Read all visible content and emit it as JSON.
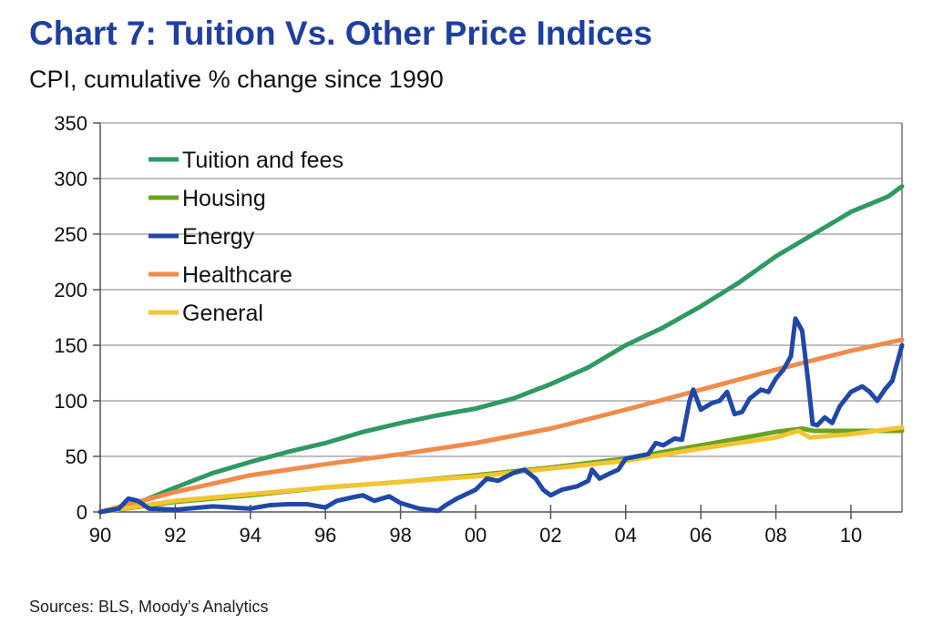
{
  "chart_data": {
    "type": "line",
    "title": "Chart 7: Tuition Vs. Other Price Indices",
    "subtitle": "CPI, cumulative % change since 1990",
    "source": "Sources: BLS, Moody's Analytics",
    "xlim": [
      1990,
      2011.36
    ],
    "ylim": [
      0,
      350
    ],
    "x_ticks": [
      1990,
      1992,
      1994,
      1996,
      1998,
      2000,
      2002,
      2004,
      2006,
      2008,
      2010
    ],
    "x_tick_labels": [
      "90",
      "92",
      "94",
      "96",
      "98",
      "00",
      "02",
      "04",
      "06",
      "08",
      "10"
    ],
    "y_ticks": [
      0,
      50,
      100,
      150,
      200,
      250,
      300,
      350
    ],
    "y_tick_labels": [
      "0",
      "50",
      "100",
      "150",
      "200",
      "250",
      "300",
      "350"
    ],
    "grid": true,
    "legend": "top-left",
    "series": [
      {
        "name": "Tuition and fees",
        "color": "#2e9a62",
        "points": [
          [
            1990,
            0
          ],
          [
            1991,
            8
          ],
          [
            1992,
            22
          ],
          [
            1993,
            35
          ],
          [
            1994,
            45
          ],
          [
            1995,
            54
          ],
          [
            1996,
            62
          ],
          [
            1997,
            72
          ],
          [
            1998,
            80
          ],
          [
            1999,
            87
          ],
          [
            2000,
            93
          ],
          [
            2001,
            102
          ],
          [
            2002,
            115
          ],
          [
            2003,
            130
          ],
          [
            2003.6,
            142
          ],
          [
            2004,
            150
          ],
          [
            2005,
            166
          ],
          [
            2006,
            185
          ],
          [
            2007,
            206
          ],
          [
            2008,
            230
          ],
          [
            2009,
            250
          ],
          [
            2010,
            270
          ],
          [
            2011,
            284
          ],
          [
            2011.36,
            293
          ]
        ]
      },
      {
        "name": "Housing",
        "color": "#6aa321",
        "points": [
          [
            1990,
            0
          ],
          [
            1992,
            9
          ],
          [
            1994,
            15
          ],
          [
            1996,
            22
          ],
          [
            1998,
            27
          ],
          [
            2000,
            33
          ],
          [
            2002,
            40
          ],
          [
            2004,
            48
          ],
          [
            2006,
            60
          ],
          [
            2008,
            72
          ],
          [
            2008.7,
            75
          ],
          [
            2009,
            73
          ],
          [
            2010,
            73
          ],
          [
            2011.36,
            73
          ]
        ]
      },
      {
        "name": "Energy",
        "color": "#2048a8",
        "points": [
          [
            1990,
            0
          ],
          [
            1990.5,
            3
          ],
          [
            1990.75,
            12
          ],
          [
            1991,
            10
          ],
          [
            1991.3,
            3
          ],
          [
            1992,
            2
          ],
          [
            1993,
            5
          ],
          [
            1994,
            3
          ],
          [
            1994.5,
            6
          ],
          [
            1995,
            7
          ],
          [
            1995.5,
            7
          ],
          [
            1996,
            4
          ],
          [
            1996.3,
            10
          ],
          [
            1996.7,
            13
          ],
          [
            1997,
            15
          ],
          [
            1997.3,
            10
          ],
          [
            1997.7,
            14
          ],
          [
            1998,
            8
          ],
          [
            1998.5,
            3
          ],
          [
            1999,
            1
          ],
          [
            1999.2,
            6
          ],
          [
            1999.5,
            12
          ],
          [
            2000,
            20
          ],
          [
            2000.3,
            30
          ],
          [
            2000.6,
            28
          ],
          [
            2001,
            35
          ],
          [
            2001.3,
            38
          ],
          [
            2001.6,
            30
          ],
          [
            2001.8,
            20
          ],
          [
            2002,
            15
          ],
          [
            2002.3,
            20
          ],
          [
            2002.7,
            23
          ],
          [
            2003,
            28
          ],
          [
            2003.1,
            38
          ],
          [
            2003.3,
            30
          ],
          [
            2003.6,
            35
          ],
          [
            2003.8,
            38
          ],
          [
            2004,
            48
          ],
          [
            2004.3,
            50
          ],
          [
            2004.6,
            52
          ],
          [
            2004.8,
            62
          ],
          [
            2005,
            60
          ],
          [
            2005.3,
            66
          ],
          [
            2005.5,
            65
          ],
          [
            2005.7,
            100
          ],
          [
            2005.8,
            110
          ],
          [
            2006,
            92
          ],
          [
            2006.3,
            98
          ],
          [
            2006.5,
            100
          ],
          [
            2006.7,
            108
          ],
          [
            2006.9,
            88
          ],
          [
            2007.1,
            90
          ],
          [
            2007.3,
            102
          ],
          [
            2007.6,
            110
          ],
          [
            2007.8,
            108
          ],
          [
            2008,
            120
          ],
          [
            2008.2,
            128
          ],
          [
            2008.4,
            140
          ],
          [
            2008.52,
            174
          ],
          [
            2008.7,
            163
          ],
          [
            2008.85,
            120
          ],
          [
            2008.98,
            79
          ],
          [
            2009.1,
            78
          ],
          [
            2009.3,
            85
          ],
          [
            2009.5,
            80
          ],
          [
            2009.7,
            95
          ],
          [
            2010,
            108
          ],
          [
            2010.3,
            113
          ],
          [
            2010.5,
            108
          ],
          [
            2010.7,
            100
          ],
          [
            2010.9,
            110
          ],
          [
            2011.1,
            118
          ],
          [
            2011.36,
            150
          ]
        ]
      },
      {
        "name": "Healthcare",
        "color": "#ef8c4a",
        "points": [
          [
            1990,
            0
          ],
          [
            1992,
            18
          ],
          [
            1994,
            33
          ],
          [
            1996,
            43
          ],
          [
            1998,
            52
          ],
          [
            2000,
            62
          ],
          [
            2002,
            75
          ],
          [
            2004,
            92
          ],
          [
            2006,
            110
          ],
          [
            2008,
            128
          ],
          [
            2010,
            145
          ],
          [
            2011.36,
            155
          ]
        ]
      },
      {
        "name": "General",
        "color": "#f4c430",
        "points": [
          [
            1990,
            0
          ],
          [
            1992,
            10
          ],
          [
            1994,
            16
          ],
          [
            1996,
            22
          ],
          [
            1998,
            27
          ],
          [
            2000,
            32
          ],
          [
            2002,
            39
          ],
          [
            2004,
            46
          ],
          [
            2006,
            57
          ],
          [
            2008,
            67
          ],
          [
            2008.6,
            73
          ],
          [
            2008.9,
            67
          ],
          [
            2010,
            70
          ],
          [
            2011.36,
            76
          ]
        ]
      }
    ]
  }
}
